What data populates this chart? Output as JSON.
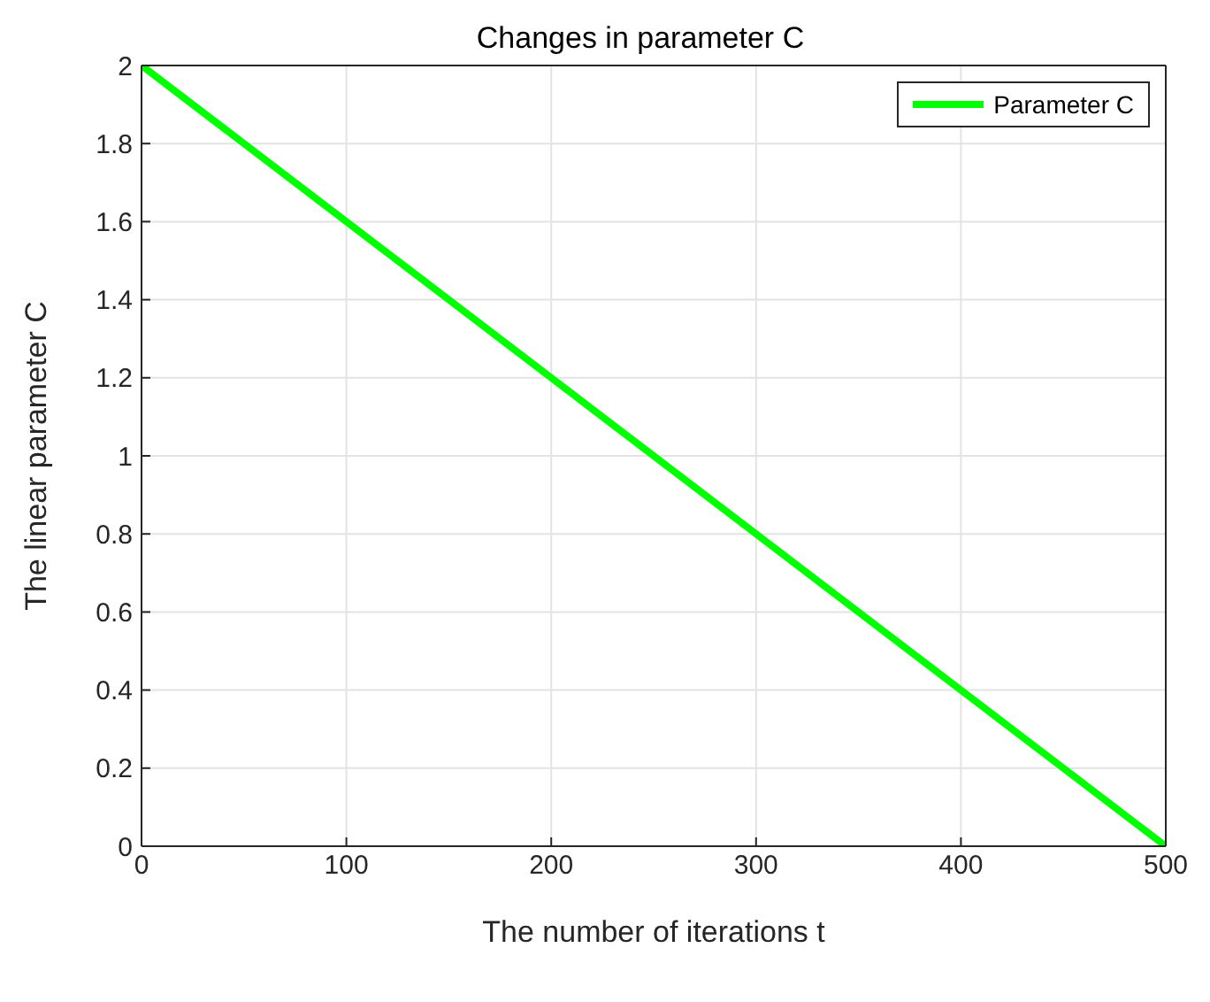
{
  "chart_data": {
    "type": "line",
    "title": "Changes in parameter C",
    "xlabel": "The number of iterations t",
    "ylabel": "The linear parameter C",
    "x": [
      0,
      500
    ],
    "series": [
      {
        "name": "Parameter C",
        "color": "#00ff00",
        "values": [
          2,
          0
        ]
      }
    ],
    "xlim": [
      0,
      500
    ],
    "xticks": [
      0,
      100,
      200,
      300,
      400,
      500
    ],
    "ylim": [
      0,
      2
    ],
    "yticks": [
      0,
      0.2,
      0.4,
      0.6,
      0.8,
      1,
      1.2,
      1.4,
      1.6,
      1.8,
      2
    ],
    "grid": true,
    "legend": "top right",
    "marker": "none",
    "line_style": "solid"
  }
}
